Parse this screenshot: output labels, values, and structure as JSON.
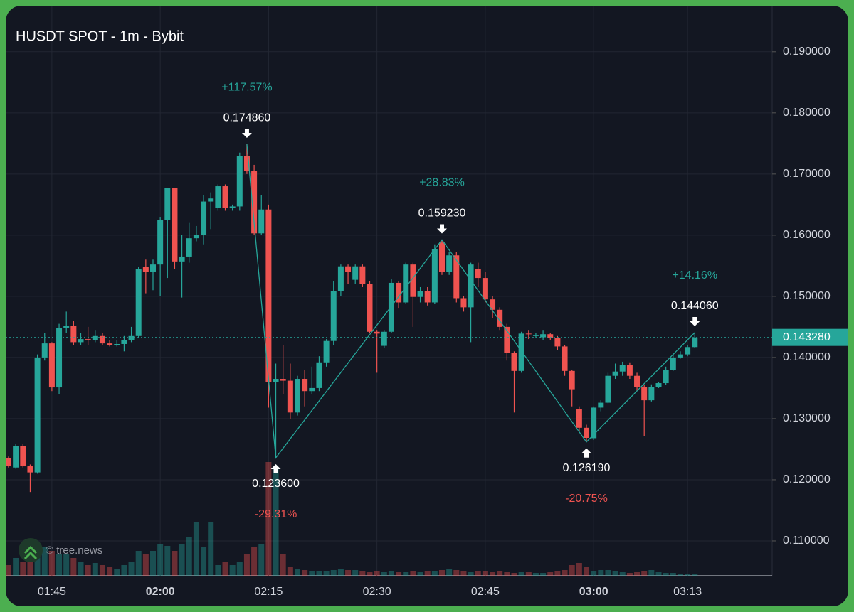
{
  "chart_data": {
    "type": "candlestick",
    "title": "HUSDT SPOT - 1m - Bybit",
    "watermark": "© tree.news",
    "up_color": "#26a69a",
    "down_color": "#ef5350",
    "grid": true,
    "x": [
      "01:39",
      "01:40",
      "01:41",
      "01:42",
      "01:43",
      "01:44",
      "01:45",
      "01:46",
      "01:47",
      "01:48",
      "01:49",
      "01:50",
      "01:51",
      "01:52",
      "01:53",
      "01:54",
      "01:55",
      "01:56",
      "01:57",
      "01:58",
      "01:59",
      "02:00",
      "02:01",
      "02:02",
      "02:03",
      "02:04",
      "02:05",
      "02:06",
      "02:07",
      "02:08",
      "02:09",
      "02:10",
      "02:11",
      "02:12",
      "02:13",
      "02:14",
      "02:15",
      "02:16",
      "02:17",
      "02:18",
      "02:19",
      "02:20",
      "02:21",
      "02:22",
      "02:23",
      "02:24",
      "02:25",
      "02:26",
      "02:27",
      "02:28",
      "02:29",
      "02:30",
      "02:31",
      "02:32",
      "02:33",
      "02:34",
      "02:35",
      "02:36",
      "02:37",
      "02:38",
      "02:39",
      "02:40",
      "02:41",
      "02:42",
      "02:43",
      "02:44",
      "02:45",
      "02:46",
      "02:47",
      "02:48",
      "02:49",
      "02:50",
      "02:51",
      "02:52",
      "02:53",
      "02:54",
      "02:55",
      "02:56",
      "02:57",
      "02:58",
      "02:59",
      "03:00",
      "03:01",
      "03:02",
      "03:03",
      "03:04",
      "03:05",
      "03:06",
      "03:07",
      "03:08",
      "03:09",
      "03:10",
      "03:11",
      "03:12",
      "03:13",
      "03:14"
    ],
    "open": [
      0.1235,
      0.122,
      0.1255,
      0.1222,
      0.1212,
      0.14,
      0.1423,
      0.1351,
      0.1448,
      0.1452,
      0.1425,
      0.143,
      0.1428,
      0.1435,
      0.1423,
      0.142,
      0.1422,
      0.1428,
      0.1435,
      0.1548,
      0.154,
      0.1552,
      0.1625,
      0.1677,
      0.1557,
      0.1565,
      0.1595,
      0.16,
      0.1655,
      0.1645,
      0.168,
      0.1645,
      0.1647,
      0.1729,
      0.1705,
      0.1603,
      0.1642,
      0.136,
      0.1365,
      0.1362,
      0.131,
      0.1365,
      0.1345,
      0.135,
      0.1392,
      0.1427,
      0.1508,
      0.1549,
      0.1527,
      0.1549,
      0.152,
      0.1442,
      0.1419,
      0.1442,
      0.1522,
      0.149,
      0.1552,
      0.1499,
      0.1508,
      0.149,
      0.1588,
      0.154,
      0.1567,
      0.1497,
      0.1482,
      0.1545,
      0.153,
      0.1495,
      0.1478,
      0.145,
      0.1408,
      0.1378,
      0.1439,
      0.1435,
      0.1433,
      0.1438,
      0.1432,
      0.1418,
      0.1378,
      0.1315,
      0.1285,
      0.1268,
      0.1318,
      0.1326,
      0.137,
      0.1377,
      0.1388,
      0.137,
      0.1352,
      0.133,
      0.1352,
      0.1358,
      0.138,
      0.14,
      0.1405,
      0.1417
    ],
    "high": [
      0.1238,
      0.1258,
      0.1258,
      0.1225,
      0.1405,
      0.144,
      0.1425,
      0.1455,
      0.1475,
      0.146,
      0.144,
      0.145,
      0.1445,
      0.144,
      0.1428,
      0.1428,
      0.1435,
      0.145,
      0.1548,
      0.156,
      0.156,
      0.163,
      0.1677,
      0.1677,
      0.16,
      0.162,
      0.1615,
      0.1665,
      0.167,
      0.1683,
      0.1683,
      0.165,
      0.1735,
      0.17486,
      0.1715,
      0.1665,
      0.165,
      0.139,
      0.142,
      0.139,
      0.137,
      0.138,
      0.1385,
      0.1402,
      0.143,
      0.1525,
      0.1552,
      0.1552,
      0.1552,
      0.1552,
      0.1525,
      0.1445,
      0.1445,
      0.1528,
      0.1525,
      0.1555,
      0.1555,
      0.1515,
      0.1515,
      0.1585,
      0.15923,
      0.1572,
      0.1572,
      0.15,
      0.1555,
      0.1555,
      0.154,
      0.15,
      0.1482,
      0.1455,
      0.141,
      0.1442,
      0.1445,
      0.144,
      0.1445,
      0.144,
      0.1435,
      0.142,
      0.138,
      0.132,
      0.129,
      0.132,
      0.133,
      0.1375,
      0.139,
      0.1393,
      0.1392,
      0.1375,
      0.1355,
      0.1356,
      0.136,
      0.1385,
      0.1405,
      0.141,
      0.142,
      0.14406
    ],
    "low": [
      0.122,
      0.1218,
      0.122,
      0.118,
      0.121,
      0.1395,
      0.1345,
      0.134,
      0.144,
      0.142,
      0.142,
      0.142,
      0.1425,
      0.142,
      0.1418,
      0.1418,
      0.141,
      0.1425,
      0.1433,
      0.1505,
      0.151,
      0.15,
      0.153,
      0.1545,
      0.1498,
      0.1555,
      0.159,
      0.1585,
      0.161,
      0.164,
      0.164,
      0.164,
      0.164,
      0.17,
      0.16,
      0.16,
      0.1318,
      0.1236,
      0.134,
      0.13,
      0.1305,
      0.132,
      0.134,
      0.1345,
      0.1385,
      0.142,
      0.15,
      0.152,
      0.152,
      0.1515,
      0.144,
      0.1375,
      0.1415,
      0.144,
      0.148,
      0.1488,
      0.145,
      0.149,
      0.1485,
      0.1488,
      0.1535,
      0.1535,
      0.149,
      0.1475,
      0.1425,
      0.1515,
      0.149,
      0.1465,
      0.1445,
      0.1395,
      0.131,
      0.1375,
      0.143,
      0.1432,
      0.1428,
      0.1428,
      0.1412,
      0.137,
      0.132,
      0.128,
      0.12619,
      0.1265,
      0.1312,
      0.1325,
      0.1365,
      0.137,
      0.1365,
      0.1345,
      0.1272,
      0.1328,
      0.135,
      0.1355,
      0.1378,
      0.1398,
      0.1402,
      0.1415
    ],
    "close": [
      0.1222,
      0.1255,
      0.1222,
      0.1212,
      0.14,
      0.1423,
      0.1351,
      0.1448,
      0.1452,
      0.1425,
      0.143,
      0.1428,
      0.1435,
      0.1423,
      0.142,
      0.1422,
      0.1428,
      0.1435,
      0.1545,
      0.154,
      0.1552,
      0.1625,
      0.1677,
      0.1557,
      0.1565,
      0.1595,
      0.16,
      0.1655,
      0.166,
      0.168,
      0.1645,
      0.1647,
      0.1729,
      0.1705,
      0.1603,
      0.1642,
      0.136,
      0.1365,
      0.1362,
      0.131,
      0.1365,
      0.1345,
      0.135,
      0.1392,
      0.1427,
      0.1508,
      0.1549,
      0.154,
      0.1549,
      0.152,
      0.1442,
      0.1439,
      0.1442,
      0.1522,
      0.149,
      0.1552,
      0.1499,
      0.1508,
      0.149,
      0.1577,
      0.154,
      0.1567,
      0.1497,
      0.1482,
      0.1552,
      0.153,
      0.1495,
      0.1478,
      0.145,
      0.1408,
      0.1378,
      0.1439,
      0.1438,
      0.1437,
      0.1438,
      0.1432,
      0.1418,
      0.1378,
      0.1348,
      0.1285,
      0.12685,
      0.1318,
      0.1326,
      0.137,
      0.1377,
      0.1388,
      0.137,
      0.1352,
      0.133,
      0.1352,
      0.1358,
      0.138,
      0.14,
      0.1405,
      0.1417,
      0.14328
    ],
    "volume": [
      15,
      25,
      20,
      35,
      45,
      40,
      35,
      30,
      30,
      25,
      20,
      15,
      18,
      15,
      12,
      10,
      15,
      20,
      35,
      30,
      35,
      45,
      42,
      35,
      45,
      55,
      75,
      40,
      75,
      15,
      20,
      15,
      20,
      30,
      40,
      45,
      160,
      150,
      30,
      12,
      10,
      8,
      6,
      6,
      6,
      8,
      10,
      8,
      8,
      6,
      5,
      6,
      5,
      6,
      5,
      5,
      6,
      5,
      6,
      6,
      8,
      10,
      8,
      6,
      5,
      6,
      6,
      5,
      6,
      5,
      4,
      5,
      5,
      4,
      4,
      5,
      6,
      8,
      15,
      18,
      12,
      6,
      8,
      8,
      6,
      5,
      4,
      5,
      6,
      8,
      5,
      4,
      4,
      3,
      3,
      2
    ],
    "ylim": [
      0.1043,
      0.1973
    ],
    "yticks": [
      {
        "value": 0.11,
        "label": "0.110000"
      },
      {
        "value": 0.12,
        "label": "0.120000"
      },
      {
        "value": 0.13,
        "label": "0.130000"
      },
      {
        "value": 0.14,
        "label": "0.140000"
      },
      {
        "value": 0.15,
        "label": "0.150000"
      },
      {
        "value": 0.16,
        "label": "0.160000"
      },
      {
        "value": 0.17,
        "label": "0.170000"
      },
      {
        "value": 0.18,
        "label": "0.180000"
      },
      {
        "value": 0.19,
        "label": "0.190000"
      }
    ],
    "xticks": [
      "01:45",
      "02:00",
      "02:15",
      "02:30",
      "02:45",
      "03:00",
      "03:13"
    ],
    "last_price": {
      "value": 0.14328,
      "label": "0.143280"
    },
    "pivots": [
      {
        "x": "02:12",
        "value": 0.17486,
        "label": "0.174860",
        "change": "+117.57%"
      },
      {
        "x": "02:16",
        "value": 0.1236,
        "label": "0.123600",
        "change": "-29.31%"
      },
      {
        "x": "02:39",
        "value": 0.15923,
        "label": "0.159230",
        "change": "+28.83%"
      },
      {
        "x": "02:59",
        "value": 0.12619,
        "label": "0.126190",
        "change": "-20.75%"
      },
      {
        "x": "03:14",
        "value": 0.14406,
        "label": "0.144060",
        "change": "+14.16%"
      }
    ]
  }
}
